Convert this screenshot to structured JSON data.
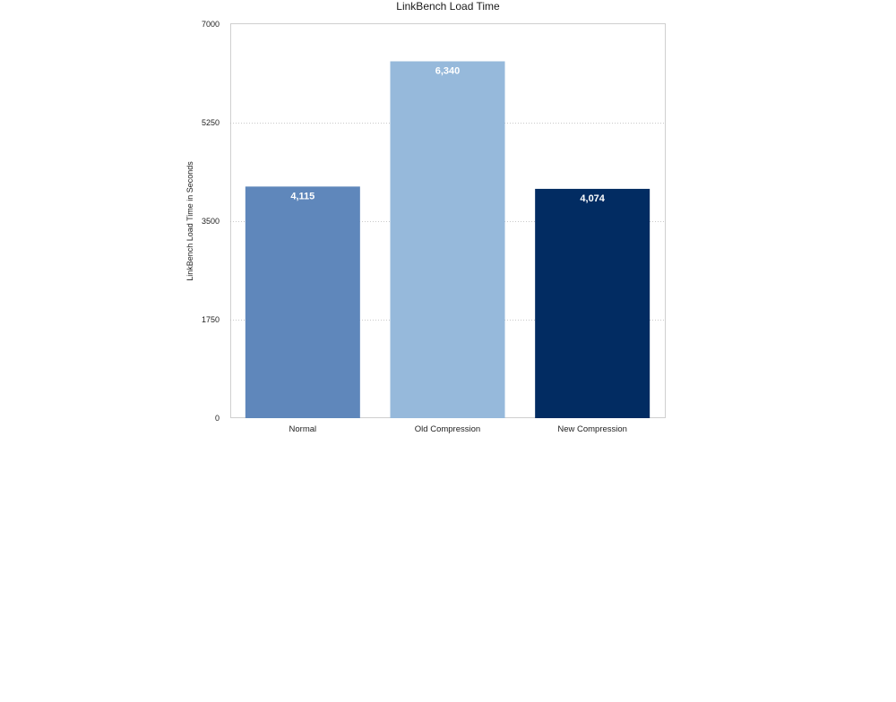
{
  "chart_data": {
    "type": "bar",
    "title": "LinkBench Load Time",
    "xlabel": "",
    "ylabel": "LinkBench Load Time in Seconds",
    "categories": [
      "Normal",
      "Old Compression",
      "New Compression"
    ],
    "values": [
      4115,
      6340,
      4074
    ],
    "data_labels": [
      "4,115",
      "6,340",
      "4,074"
    ],
    "colors": [
      "#5f87bb",
      "#96b9db",
      "#022c62"
    ],
    "ylim": [
      0,
      7000
    ],
    "yticks": [
      0,
      1750,
      3500,
      5250,
      7000
    ],
    "ytick_labels": [
      "0",
      "1750",
      "3500",
      "5250",
      "7000"
    ],
    "grid": true,
    "legend": "none"
  }
}
